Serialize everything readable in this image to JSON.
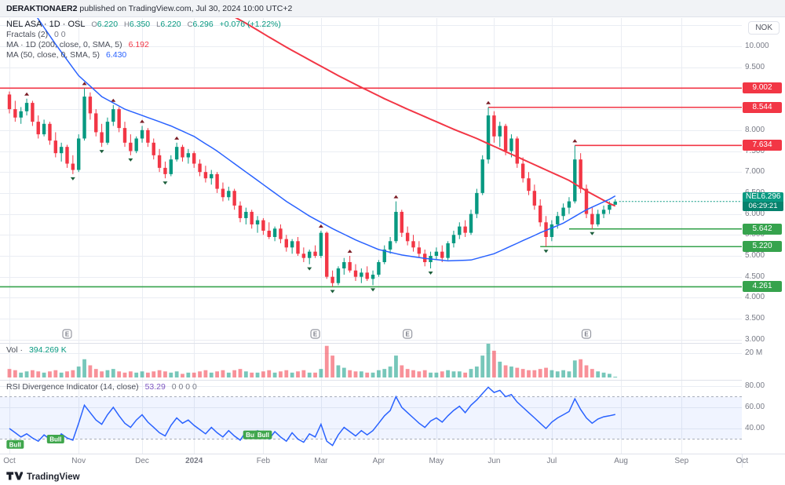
{
  "header": {
    "username": "DERAKTIONAER2",
    "rest": " published on TradingView.com, Jul 30, 2024 10:00 UTC+2"
  },
  "legend": {
    "symbol": "NEL ASA · 1D · OSL",
    "ohlc": [
      {
        "label": "O",
        "value": "6.220"
      },
      {
        "label": "H",
        "value": "6.350"
      },
      {
        "label": "L",
        "value": "6.220"
      },
      {
        "label": "C",
        "value": "6.296"
      }
    ],
    "change": "+0.076 (+1.22%)",
    "fractals": {
      "label": "Fractals (2)",
      "values": "0 0"
    },
    "ma200": {
      "label": "MA · 1D (200, close, 0, SMA, 5)",
      "value": "6.192"
    },
    "ma50": {
      "label": "MA (50, close, 0, SMA, 5)",
      "value": "6.430"
    }
  },
  "volume_legend": {
    "label": "Vol ·",
    "value": "394.269 K"
  },
  "rsi_legend": {
    "label": "RSI Divergence Indicator (14, close)",
    "value": "53.29",
    "extra": "0 0 0 0"
  },
  "axis": {
    "currency": "NOK",
    "price_ticks": [
      "10.000",
      "9.500",
      "9.000",
      "8.500",
      "8.000",
      "7.500",
      "7.000",
      "6.500",
      "6.000",
      "5.500",
      "5.000",
      "4.500",
      "4.000",
      "3.500",
      "3.000"
    ],
    "volume_tick": "20 M",
    "rsi_ticks": [
      "80.00",
      "60.00",
      "40.00"
    ]
  },
  "last_price": {
    "symbol": "NEL",
    "value": "6.296",
    "countdown": "06:29:21"
  },
  "footer": {
    "brand": "TradingView"
  },
  "chart_data": {
    "type": "candlestick",
    "title": "NEL ASA · 1D · OSL",
    "currency": "NOK",
    "y_range": [
      3.0,
      10.7
    ],
    "x_axis_months": [
      [
        "Oct",
        0
      ],
      [
        "Nov",
        12
      ],
      [
        "Dec",
        23
      ],
      [
        "2024",
        32
      ],
      [
        "Feb",
        44
      ],
      [
        "Mar",
        54
      ],
      [
        "Apr",
        64
      ],
      [
        "May",
        74
      ],
      [
        "Jun",
        84
      ],
      [
        "Jul",
        94
      ],
      [
        "Aug",
        106
      ],
      [
        "Sep",
        116.5
      ],
      [
        "Oct",
        127
      ]
    ],
    "ohlc": [
      [
        8.85,
        8.92,
        8.4,
        8.5
      ],
      [
        8.5,
        8.7,
        8.2,
        8.3
      ],
      [
        8.3,
        8.55,
        8.15,
        8.45
      ],
      [
        8.45,
        8.75,
        8.35,
        8.65
      ],
      [
        8.65,
        8.7,
        8.1,
        8.2
      ],
      [
        8.2,
        8.35,
        7.8,
        7.9
      ],
      [
        7.9,
        8.25,
        7.85,
        8.15
      ],
      [
        8.15,
        8.2,
        7.65,
        7.75
      ],
      [
        7.75,
        7.95,
        7.35,
        7.45
      ],
      [
        7.45,
        7.7,
        7.25,
        7.6
      ],
      [
        7.6,
        7.65,
        7.1,
        7.2
      ],
      [
        7.2,
        7.4,
        6.95,
        7.05
      ],
      [
        7.05,
        7.9,
        7.0,
        7.8
      ],
      [
        7.8,
        9.0,
        7.75,
        8.8
      ],
      [
        8.8,
        8.9,
        8.25,
        8.4
      ],
      [
        8.4,
        8.5,
        7.85,
        7.95
      ],
      [
        7.95,
        8.15,
        7.6,
        7.7
      ],
      [
        7.7,
        8.3,
        7.65,
        8.2
      ],
      [
        8.2,
        8.6,
        8.1,
        8.5
      ],
      [
        8.5,
        8.55,
        7.95,
        8.05
      ],
      [
        8.05,
        8.2,
        7.6,
        7.7
      ],
      [
        7.7,
        7.9,
        7.4,
        7.5
      ],
      [
        7.5,
        7.85,
        7.45,
        7.8
      ],
      [
        7.8,
        8.1,
        7.7,
        8.0
      ],
      [
        8.0,
        8.05,
        7.6,
        7.7
      ],
      [
        7.7,
        7.8,
        7.3,
        7.4
      ],
      [
        7.4,
        7.55,
        7.0,
        7.1
      ],
      [
        7.1,
        7.25,
        6.85,
        6.95
      ],
      [
        6.95,
        7.4,
        6.9,
        7.3
      ],
      [
        7.3,
        7.7,
        7.25,
        7.6
      ],
      [
        7.6,
        7.65,
        7.25,
        7.35
      ],
      [
        7.35,
        7.55,
        7.2,
        7.45
      ],
      [
        7.45,
        7.5,
        7.1,
        7.2
      ],
      [
        7.2,
        7.3,
        6.9,
        7.0
      ],
      [
        7.0,
        7.15,
        6.75,
        6.85
      ],
      [
        6.85,
        7.05,
        6.7,
        6.95
      ],
      [
        6.95,
        7.0,
        6.5,
        6.6
      ],
      [
        6.6,
        6.75,
        6.3,
        6.4
      ],
      [
        6.4,
        6.65,
        6.32,
        6.55
      ],
      [
        6.55,
        6.6,
        6.1,
        6.2
      ],
      [
        6.2,
        6.3,
        5.8,
        5.9
      ],
      [
        5.9,
        6.15,
        5.75,
        6.05
      ],
      [
        6.05,
        6.1,
        5.65,
        5.75
      ],
      [
        5.75,
        5.95,
        5.55,
        5.85
      ],
      [
        5.85,
        5.9,
        5.5,
        5.6
      ],
      [
        5.6,
        5.8,
        5.4,
        5.45
      ],
      [
        5.45,
        5.7,
        5.35,
        5.65
      ],
      [
        5.65,
        5.75,
        5.3,
        5.4
      ],
      [
        5.4,
        5.5,
        5.1,
        5.2
      ],
      [
        5.2,
        5.4,
        5.05,
        5.35
      ],
      [
        5.35,
        5.45,
        5.0,
        5.05
      ],
      [
        5.05,
        5.2,
        4.85,
        4.95
      ],
      [
        4.95,
        5.15,
        4.8,
        5.1
      ],
      [
        5.1,
        5.25,
        4.95,
        5.0
      ],
      [
        5.0,
        5.6,
        4.95,
        5.55
      ],
      [
        5.55,
        5.58,
        4.45,
        4.5
      ],
      [
        4.5,
        4.65,
        4.261,
        4.35
      ],
      [
        4.35,
        4.75,
        4.3,
        4.7
      ],
      [
        4.7,
        4.95,
        4.55,
        4.85
      ],
      [
        4.85,
        5.0,
        4.6,
        4.65
      ],
      [
        4.65,
        4.8,
        4.4,
        4.5
      ],
      [
        4.5,
        4.7,
        4.35,
        4.6
      ],
      [
        4.6,
        4.75,
        4.4,
        4.45
      ],
      [
        4.45,
        4.65,
        4.3,
        4.55
      ],
      [
        4.55,
        4.9,
        4.5,
        4.85
      ],
      [
        4.85,
        5.25,
        4.8,
        5.15
      ],
      [
        5.15,
        5.45,
        5.05,
        5.35
      ],
      [
        5.35,
        6.3,
        5.3,
        6.05
      ],
      [
        6.05,
        6.1,
        5.45,
        5.55
      ],
      [
        5.55,
        5.7,
        5.25,
        5.35
      ],
      [
        5.35,
        5.5,
        5.1,
        5.2
      ],
      [
        5.2,
        5.35,
        4.95,
        5.05
      ],
      [
        5.05,
        5.15,
        4.75,
        4.85
      ],
      [
        4.85,
        5.1,
        4.7,
        5.0
      ],
      [
        5.0,
        5.2,
        4.9,
        5.1
      ],
      [
        5.1,
        5.25,
        4.85,
        4.95
      ],
      [
        4.95,
        5.35,
        4.9,
        5.3
      ],
      [
        5.3,
        5.6,
        5.2,
        5.5
      ],
      [
        5.5,
        5.8,
        5.4,
        5.7
      ],
      [
        5.7,
        5.85,
        5.45,
        5.55
      ],
      [
        5.55,
        6.1,
        5.5,
        6.0
      ],
      [
        6.0,
        6.6,
        5.9,
        6.5
      ],
      [
        6.5,
        7.4,
        6.45,
        7.3
      ],
      [
        7.3,
        8.544,
        7.2,
        8.35
      ],
      [
        8.35,
        8.45,
        7.7,
        7.85
      ],
      [
        7.85,
        8.2,
        7.6,
        8.1
      ],
      [
        8.1,
        8.15,
        7.4,
        7.5
      ],
      [
        7.5,
        7.9,
        7.35,
        7.8
      ],
      [
        7.8,
        7.85,
        7.1,
        7.2
      ],
      [
        7.2,
        7.35,
        6.75,
        6.85
      ],
      [
        6.85,
        7.0,
        6.45,
        6.55
      ],
      [
        6.55,
        6.7,
        6.1,
        6.2
      ],
      [
        6.2,
        6.35,
        5.7,
        5.8
      ],
      [
        5.8,
        5.95,
        5.22,
        5.45
      ],
      [
        5.45,
        5.85,
        5.35,
        5.75
      ],
      [
        5.75,
        6.05,
        5.65,
        5.95
      ],
      [
        5.95,
        6.25,
        5.85,
        6.15
      ],
      [
        6.15,
        6.4,
        6.0,
        6.3
      ],
      [
        6.3,
        7.634,
        6.25,
        7.3
      ],
      [
        7.3,
        7.45,
        6.5,
        6.6
      ],
      [
        6.6,
        6.7,
        5.9,
        6.0
      ],
      [
        6.0,
        6.15,
        5.642,
        5.75
      ],
      [
        5.75,
        6.1,
        5.7,
        6.0
      ],
      [
        6.0,
        6.2,
        5.9,
        6.1
      ],
      [
        6.1,
        6.3,
        6.0,
        6.22
      ],
      [
        6.22,
        6.35,
        6.22,
        6.296
      ]
    ],
    "volume": [
      7,
      6,
      4,
      5,
      6,
      5,
      4,
      5,
      6,
      4,
      5,
      6,
      9,
      15,
      10,
      7,
      5,
      6,
      7,
      5,
      4,
      5,
      4,
      5,
      4,
      5,
      6,
      5,
      4,
      5,
      3,
      4,
      4,
      5,
      6,
      4,
      5,
      6,
      4,
      6,
      7,
      5,
      4,
      4,
      5,
      6,
      4,
      5,
      6,
      4,
      5,
      6,
      4,
      4,
      7,
      26,
      18,
      10,
      8,
      6,
      5,
      5,
      4,
      4,
      6,
      7,
      9,
      18,
      10,
      7,
      6,
      5,
      6,
      4,
      4,
      5,
      6,
      5,
      5,
      4,
      7,
      9,
      18,
      28,
      22,
      13,
      10,
      9,
      8,
      7,
      6,
      6,
      7,
      8,
      6,
      5,
      6,
      5,
      14,
      15,
      10,
      7,
      5,
      4,
      3,
      0.4
    ],
    "volume_unit": "M",
    "ma50_points": [
      [
        0,
        11.8
      ],
      [
        4,
        10.85
      ],
      [
        8,
        10.05
      ],
      [
        12,
        9.3
      ],
      [
        16,
        8.8
      ],
      [
        20,
        8.5
      ],
      [
        24,
        8.3
      ],
      [
        28,
        8.1
      ],
      [
        32,
        7.85
      ],
      [
        36,
        7.5
      ],
      [
        40,
        7.1
      ],
      [
        44,
        6.7
      ],
      [
        48,
        6.3
      ],
      [
        52,
        5.95
      ],
      [
        56,
        5.65
      ],
      [
        60,
        5.38
      ],
      [
        64,
        5.15
      ],
      [
        68,
        5.02
      ],
      [
        72,
        4.94
      ],
      [
        76,
        4.88
      ],
      [
        80,
        4.9
      ],
      [
        84,
        5.05
      ],
      [
        88,
        5.3
      ],
      [
        92,
        5.55
      ],
      [
        96,
        5.78
      ],
      [
        100,
        6.1
      ],
      [
        104,
        6.35
      ],
      [
        105,
        6.43
      ]
    ],
    "ma200_points": [
      [
        37,
        10.85
      ],
      [
        41,
        10.55
      ],
      [
        45,
        10.22
      ],
      [
        49,
        9.9
      ],
      [
        53,
        9.6
      ],
      [
        57,
        9.3
      ],
      [
        61,
        9.02
      ],
      [
        65,
        8.75
      ],
      [
        69,
        8.5
      ],
      [
        73,
        8.26
      ],
      [
        77,
        8.02
      ],
      [
        81,
        7.8
      ],
      [
        85,
        7.55
      ],
      [
        89,
        7.3
      ],
      [
        93,
        7.05
      ],
      [
        97,
        6.8
      ],
      [
        100,
        6.55
      ],
      [
        102,
        6.4
      ],
      [
        104,
        6.25
      ],
      [
        105,
        6.19
      ]
    ],
    "rsi": [
      40,
      36,
      32,
      35,
      31,
      28,
      34,
      30,
      27,
      35,
      31,
      29,
      45,
      62,
      55,
      48,
      44,
      53,
      60,
      52,
      45,
      41,
      48,
      53,
      46,
      41,
      36,
      33,
      43,
      50,
      45,
      48,
      43,
      39,
      35,
      41,
      36,
      32,
      38,
      33,
      29,
      37,
      32,
      38,
      34,
      30,
      37,
      32,
      28,
      36,
      30,
      27,
      35,
      32,
      44,
      28,
      24,
      34,
      41,
      37,
      33,
      38,
      34,
      38,
      45,
      52,
      57,
      70,
      60,
      55,
      50,
      45,
      41,
      47,
      50,
      46,
      52,
      57,
      61,
      55,
      62,
      67,
      73,
      79,
      74,
      76,
      70,
      72,
      65,
      60,
      55,
      50,
      45,
      40,
      46,
      50,
      53,
      56,
      68,
      58,
      50,
      45,
      49,
      51,
      52,
      53.29
    ],
    "rsi_band": [
      30,
      70
    ],
    "levels": [
      {
        "label": "9.002",
        "price": 9.002,
        "color": "#f23645",
        "start_index": 0
      },
      {
        "label": "8.544",
        "price": 8.544,
        "color": "#f23645",
        "start_index": 83
      },
      {
        "label": "7.634",
        "price": 7.634,
        "color": "#f23645",
        "start_index": 98
      },
      {
        "label": "5.642",
        "price": 5.642,
        "color": "#36a34d",
        "start_index": 97
      },
      {
        "label": "5.220",
        "price": 5.22,
        "color": "#36a34d",
        "start_index": 92
      },
      {
        "label": "4.261",
        "price": 4.261,
        "color": "#36a34d",
        "start_index": 0
      }
    ],
    "last_price": 6.296,
    "bull_markers": [
      {
        "index": 1,
        "rsi": 25
      },
      {
        "index": 8,
        "rsi": 30
      },
      {
        "index": 42,
        "rsi": 34
      },
      {
        "index": 44,
        "rsi": 34
      }
    ],
    "bull_label": "Bull",
    "earnings_indices": [
      10,
      53,
      69,
      100
    ],
    "earnings_label": "E",
    "colors": {
      "up": "#089981",
      "down": "#f23645",
      "ma50": "#2962ff",
      "ma200": "#f23645",
      "rsi": "#2962ff",
      "band": "rgba(41,98,255,0.07)",
      "grid": "#eaedf3",
      "divider": "#dfe2ea",
      "bull": "#3fa64c"
    }
  }
}
